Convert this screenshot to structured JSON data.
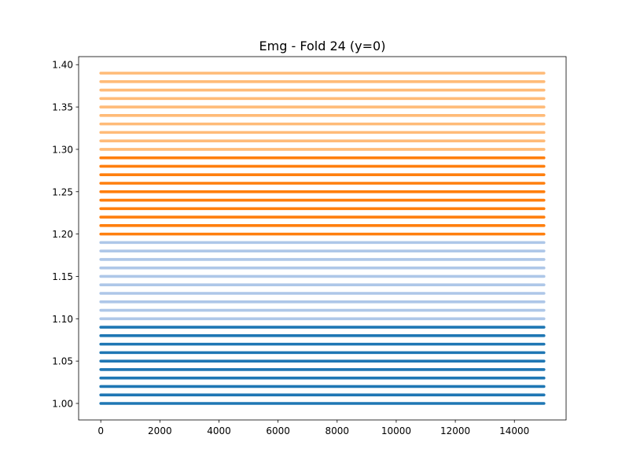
{
  "chart_data": {
    "type": "line",
    "title": "Emg - Fold 24 (y=0)",
    "xlabel": "",
    "ylabel": "",
    "xlim": [
      -750,
      15750
    ],
    "ylim": [
      0.9805,
      1.4095
    ],
    "x_range": [
      0,
      15000
    ],
    "x_ticks": [
      0,
      2000,
      4000,
      6000,
      8000,
      10000,
      12000,
      14000
    ],
    "x_tick_labels": [
      "0",
      "2000",
      "4000",
      "6000",
      "8000",
      "10000",
      "12000",
      "14000"
    ],
    "y_ticks": [
      1.0,
      1.05,
      1.1,
      1.15,
      1.2,
      1.25,
      1.3,
      1.35,
      1.4
    ],
    "y_tick_labels": [
      "1.00",
      "1.05",
      "1.10",
      "1.15",
      "1.20",
      "1.25",
      "1.30",
      "1.35",
      "1.40"
    ],
    "grid": false,
    "legend": "none",
    "groups": [
      {
        "color": "#1f77b4",
        "levels": [
          1.0,
          1.01,
          1.02,
          1.03,
          1.04,
          1.05,
          1.06,
          1.07,
          1.08,
          1.09
        ]
      },
      {
        "color": "#aec7e8",
        "levels": [
          1.1,
          1.11,
          1.12,
          1.13,
          1.14,
          1.15,
          1.16,
          1.17,
          1.18,
          1.19
        ]
      },
      {
        "color": "#ff7f0e",
        "levels": [
          1.2,
          1.21,
          1.22,
          1.23,
          1.24,
          1.25,
          1.26,
          1.27,
          1.28,
          1.29
        ]
      },
      {
        "color": "#ffbb78",
        "levels": [
          1.3,
          1.31,
          1.32,
          1.33,
          1.34,
          1.35,
          1.36,
          1.37,
          1.38,
          1.39
        ]
      }
    ]
  }
}
